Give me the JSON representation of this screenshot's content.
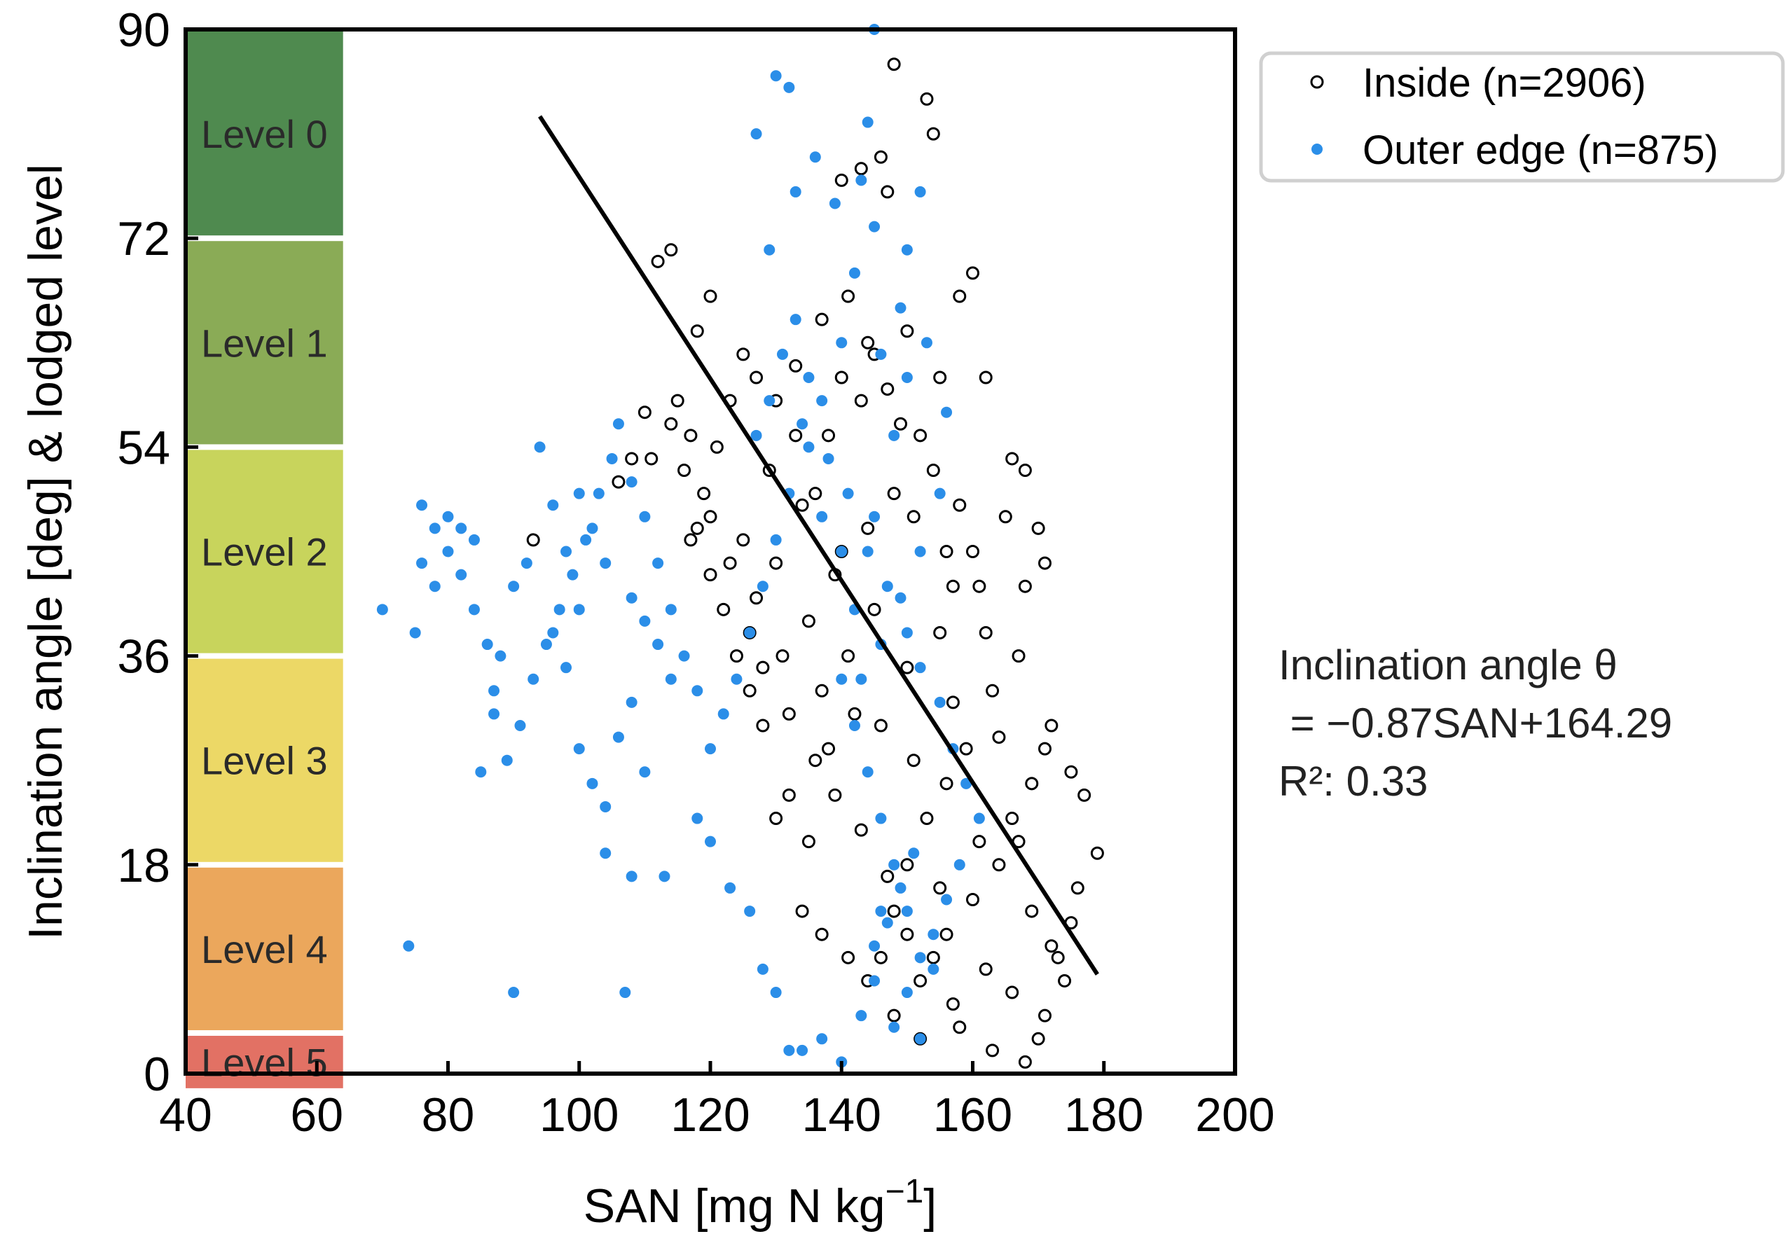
{
  "chart_data": {
    "type": "scatter",
    "title": "",
    "xlabel": "SAN [mg N kg",
    "xlabel_sup": "−1",
    "xlabel_end": "]",
    "ylabel": "Inclination angle [deg] & lodged level",
    "xlim": [
      40,
      200
    ],
    "ylim": [
      0,
      90
    ],
    "xticks": [
      "40",
      "60",
      "80",
      "100",
      "120",
      "140",
      "160",
      "180",
      "200"
    ],
    "xtick_values": [
      40,
      60,
      80,
      100,
      120,
      140,
      160,
      180,
      200
    ],
    "yticks": [
      "0",
      "18",
      "36",
      "54",
      "72",
      "90"
    ],
    "ytick_values": [
      0,
      18,
      36,
      54,
      72,
      90
    ],
    "grid": false,
    "legend_position": "top-right-outside",
    "levels": [
      {
        "label": "Level 0",
        "y_from": 72,
        "y_to": 90,
        "color": "#4f8a4f"
      },
      {
        "label": "Level 1",
        "y_from": 54,
        "y_to": 72,
        "color": "#8aab56"
      },
      {
        "label": "Level 2",
        "y_from": 36,
        "y_to": 54,
        "color": "#c8d45c"
      },
      {
        "label": "Level 3",
        "y_from": 18,
        "y_to": 36,
        "color": "#ecd866"
      },
      {
        "label": "Level 4",
        "y_from": 3.5,
        "y_to": 18,
        "color": "#eba75c"
      },
      {
        "label": "Level 5",
        "y_from": -1.5,
        "y_to": 3.5,
        "color": "#e27164"
      }
    ],
    "level_band_x": [
      40,
      64
    ],
    "series": [
      {
        "name": "Inside (n=2906)",
        "marker": "open-circle",
        "color": "#000000",
        "n": 2906,
        "sample_points": [
          [
            93,
            46
          ],
          [
            112,
            70
          ],
          [
            114,
            71
          ],
          [
            118,
            64
          ],
          [
            120,
            67
          ],
          [
            148,
            87
          ],
          [
            153,
            84
          ],
          [
            146,
            79
          ],
          [
            140,
            77
          ],
          [
            154,
            81
          ],
          [
            147,
            76
          ],
          [
            143,
            78
          ],
          [
            160,
            69
          ],
          [
            158,
            67
          ],
          [
            162,
            60
          ],
          [
            166,
            53
          ],
          [
            168,
            52
          ],
          [
            170,
            47
          ],
          [
            171,
            44
          ],
          [
            168,
            42
          ],
          [
            172,
            30
          ],
          [
            175,
            26
          ],
          [
            177,
            24
          ],
          [
            179,
            19
          ],
          [
            176,
            16
          ],
          [
            175,
            13
          ],
          [
            173,
            10
          ],
          [
            171,
            5
          ],
          [
            170,
            3
          ],
          [
            168,
            1
          ],
          [
            163,
            2
          ],
          [
            158,
            4
          ],
          [
            152,
            3
          ],
          [
            148,
            5
          ],
          [
            144,
            8
          ],
          [
            141,
            10
          ],
          [
            137,
            12
          ],
          [
            134,
            14
          ],
          [
            130,
            22
          ],
          [
            128,
            30
          ],
          [
            126,
            33
          ],
          [
            124,
            36
          ],
          [
            122,
            40
          ],
          [
            120,
            43
          ],
          [
            118,
            47
          ],
          [
            116,
            52
          ],
          [
            114,
            56
          ],
          [
            110,
            57
          ],
          [
            108,
            53
          ],
          [
            106,
            51
          ],
          [
            135,
            20
          ],
          [
            132,
            24
          ],
          [
            138,
            28
          ],
          [
            142,
            31
          ],
          [
            150,
            35
          ],
          [
            155,
            38
          ],
          [
            157,
            42
          ],
          [
            160,
            45
          ],
          [
            165,
            48
          ],
          [
            167,
            36
          ],
          [
            163,
            33
          ],
          [
            159,
            28
          ],
          [
            156,
            25
          ],
          [
            153,
            22
          ],
          [
            150,
            18
          ],
          [
            148,
            14
          ],
          [
            146,
            10
          ],
          [
            152,
            8
          ],
          [
            156,
            12
          ],
          [
            160,
            15
          ],
          [
            164,
            18
          ],
          [
            166,
            22
          ],
          [
            169,
            25
          ],
          [
            171,
            28
          ],
          [
            161,
            20
          ],
          [
            155,
            16
          ],
          [
            145,
            40
          ],
          [
            140,
            45
          ],
          [
            136,
            50
          ],
          [
            133,
            55
          ],
          [
            130,
            58
          ],
          [
            127,
            60
          ],
          [
            125,
            62
          ],
          [
            123,
            58
          ],
          [
            121,
            54
          ],
          [
            119,
            50
          ],
          [
            117,
            46
          ],
          [
            140,
            60
          ],
          [
            145,
            62
          ],
          [
            150,
            64
          ],
          [
            155,
            60
          ],
          [
            152,
            55
          ],
          [
            148,
            50
          ],
          [
            144,
            47
          ],
          [
            139,
            43
          ],
          [
            135,
            39
          ],
          [
            131,
            36
          ],
          [
            137,
            33
          ],
          [
            141,
            36
          ],
          [
            146,
            30
          ],
          [
            151,
            27
          ],
          [
            157,
            32
          ],
          [
            162,
            38
          ],
          [
            158,
            49
          ],
          [
            154,
            52
          ],
          [
            149,
            56
          ],
          [
            143,
            58
          ],
          [
            138,
            55
          ],
          [
            134,
            49
          ],
          [
            130,
            44
          ],
          [
            127,
            41
          ],
          [
            125,
            46
          ],
          [
            129,
            52
          ],
          [
            133,
            61
          ],
          [
            137,
            65
          ],
          [
            141,
            67
          ],
          [
            144,
            63
          ],
          [
            147,
            59
          ],
          [
            151,
            48
          ],
          [
            156,
            45
          ],
          [
            161,
            42
          ],
          [
            164,
            29
          ],
          [
            167,
            20
          ],
          [
            169,
            14
          ],
          [
            172,
            11
          ],
          [
            174,
            8
          ],
          [
            166,
            7
          ],
          [
            162,
            9
          ],
          [
            157,
            6
          ],
          [
            154,
            10
          ],
          [
            150,
            12
          ],
          [
            147,
            17
          ],
          [
            143,
            21
          ],
          [
            139,
            24
          ],
          [
            136,
            27
          ],
          [
            132,
            31
          ],
          [
            128,
            35
          ],
          [
            126,
            38
          ],
          [
            123,
            44
          ],
          [
            120,
            48
          ],
          [
            117,
            55
          ],
          [
            115,
            58
          ],
          [
            111,
            53
          ]
        ]
      },
      {
        "name": "Outer edge (n=875)",
        "marker": "filled-circle",
        "color": "#2b8ee8",
        "n": 875,
        "sample_points": [
          [
            70,
            40
          ],
          [
            74,
            11
          ],
          [
            75,
            38
          ],
          [
            76,
            44
          ],
          [
            78,
            42
          ],
          [
            80,
            48
          ],
          [
            82,
            47
          ],
          [
            84,
            46
          ],
          [
            85,
            26
          ],
          [
            87,
            31
          ],
          [
            88,
            36
          ],
          [
            90,
            42
          ],
          [
            92,
            44
          ],
          [
            94,
            54
          ],
          [
            96,
            49
          ],
          [
            98,
            45
          ],
          [
            100,
            50
          ],
          [
            102,
            47
          ],
          [
            104,
            44
          ],
          [
            106,
            56
          ],
          [
            108,
            41
          ],
          [
            110,
            39
          ],
          [
            112,
            37
          ],
          [
            114,
            34
          ],
          [
            90,
            7
          ],
          [
            107,
            7
          ],
          [
            104,
            19
          ],
          [
            108,
            17
          ],
          [
            113,
            17
          ],
          [
            118,
            22
          ],
          [
            120,
            20
          ],
          [
            123,
            16
          ],
          [
            126,
            14
          ],
          [
            128,
            9
          ],
          [
            130,
            7
          ],
          [
            132,
            2
          ],
          [
            134,
            2
          ],
          [
            137,
            3
          ],
          [
            140,
            1
          ],
          [
            143,
            5
          ],
          [
            145,
            8
          ],
          [
            148,
            4
          ],
          [
            150,
            7
          ],
          [
            152,
            3
          ],
          [
            154,
            9
          ],
          [
            147,
            13
          ],
          [
            149,
            16
          ],
          [
            151,
            19
          ],
          [
            145,
            11
          ],
          [
            146,
            14
          ],
          [
            130,
            86
          ],
          [
            132,
            85
          ],
          [
            127,
            81
          ],
          [
            136,
            79
          ],
          [
            144,
            82
          ],
          [
            139,
            75
          ],
          [
            143,
            77
          ],
          [
            145,
            90
          ],
          [
            133,
            76
          ],
          [
            129,
            71
          ],
          [
            142,
            69
          ],
          [
            145,
            73
          ],
          [
            150,
            71
          ],
          [
            152,
            76
          ],
          [
            149,
            66
          ],
          [
            146,
            62
          ],
          [
            140,
            63
          ],
          [
            137,
            58
          ],
          [
            135,
            54
          ],
          [
            132,
            50
          ],
          [
            130,
            46
          ],
          [
            128,
            42
          ],
          [
            126,
            38
          ],
          [
            124,
            34
          ],
          [
            122,
            31
          ],
          [
            120,
            28
          ],
          [
            118,
            33
          ],
          [
            116,
            36
          ],
          [
            114,
            40
          ],
          [
            112,
            44
          ],
          [
            110,
            48
          ],
          [
            108,
            51
          ],
          [
            105,
            53
          ],
          [
            103,
            50
          ],
          [
            101,
            46
          ],
          [
            99,
            43
          ],
          [
            97,
            40
          ],
          [
            95,
            37
          ],
          [
            93,
            34
          ],
          [
            91,
            30
          ],
          [
            89,
            27
          ],
          [
            87,
            33
          ],
          [
            86,
            37
          ],
          [
            84,
            40
          ],
          [
            82,
            43
          ],
          [
            80,
            45
          ],
          [
            78,
            47
          ],
          [
            76,
            49
          ],
          [
            100,
            28
          ],
          [
            102,
            25
          ],
          [
            104,
            23
          ],
          [
            106,
            29
          ],
          [
            108,
            32
          ],
          [
            110,
            26
          ],
          [
            96,
            38
          ],
          [
            98,
            35
          ],
          [
            100,
            40
          ],
          [
            134,
            56
          ],
          [
            138,
            53
          ],
          [
            141,
            50
          ],
          [
            144,
            45
          ],
          [
            147,
            42
          ],
          [
            150,
            38
          ],
          [
            152,
            35
          ],
          [
            155,
            32
          ],
          [
            157,
            28
          ],
          [
            159,
            25
          ],
          [
            161,
            22
          ],
          [
            158,
            18
          ],
          [
            156,
            15
          ],
          [
            154,
            12
          ],
          [
            152,
            10
          ],
          [
            150,
            14
          ],
          [
            148,
            18
          ],
          [
            146,
            22
          ],
          [
            144,
            26
          ],
          [
            142,
            30
          ],
          [
            140,
            34
          ],
          [
            142,
            40
          ],
          [
            145,
            48
          ],
          [
            148,
            55
          ],
          [
            150,
            60
          ],
          [
            153,
            63
          ],
          [
            156,
            57
          ],
          [
            155,
            50
          ],
          [
            152,
            45
          ],
          [
            149,
            41
          ],
          [
            146,
            37
          ],
          [
            143,
            34
          ],
          [
            140,
            45
          ],
          [
            137,
            48
          ],
          [
            135,
            60
          ],
          [
            133,
            65
          ],
          [
            131,
            62
          ],
          [
            129,
            58
          ],
          [
            127,
            55
          ]
        ]
      }
    ],
    "regression": {
      "slope": -0.87,
      "intercept": 164.29,
      "x_range": [
        94,
        179
      ],
      "color": "#000000"
    },
    "annotations": {
      "eq_line1": "Inclination angle θ",
      "eq_line2": " = −0.87SAN+164.29",
      "eq_line3": "R²: 0.33"
    }
  }
}
